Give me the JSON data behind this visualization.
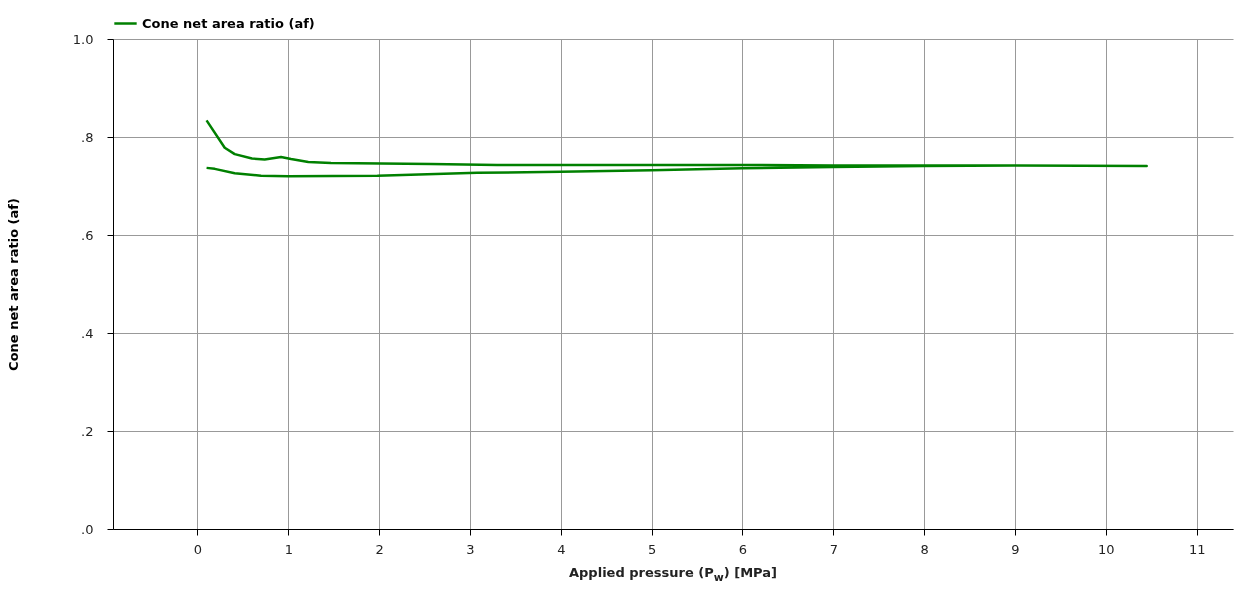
{
  "chart_data": {
    "type": "line",
    "xlabel": "Applied pressure (P$_{w}$) [MPa]",
    "ylabel": "Cone net area ratio (af)",
    "series": [
      {
        "name": "Cone net area ratio (af)",
        "color": "#008000",
        "x": [
          0.1,
          0.19,
          0.41,
          0.7,
          1.0,
          1.98,
          3.08,
          4.0,
          5.0,
          6.0,
          7.0,
          8.0,
          9.0,
          10.45,
          9.0,
          8.0,
          7.0,
          6.0,
          5.0,
          4.0,
          3.3,
          2.57,
          1.47,
          1.22,
          1.03,
          0.92,
          0.74,
          0.6,
          0.41,
          0.3,
          0.1
        ],
        "values": [
          0.737,
          0.735,
          0.726,
          0.721,
          0.72,
          0.721,
          0.727,
          0.729,
          0.732,
          0.736,
          0.739,
          0.741,
          0.742,
          0.741,
          0.742,
          0.742,
          0.742,
          0.743,
          0.743,
          0.743,
          0.743,
          0.745,
          0.747,
          0.749,
          0.755,
          0.759,
          0.754,
          0.756,
          0.765,
          0.778,
          0.834
        ]
      }
    ],
    "xlim": [
      -0.93,
      11.4
    ],
    "xticks": [
      0,
      1,
      2,
      3,
      4,
      5,
      6,
      7,
      8,
      9,
      10,
      11
    ],
    "ylim": [
      0,
      1
    ],
    "yticks": [
      {
        "value": 0,
        "label": ".0"
      },
      {
        "value": 0.2,
        "label": ".2"
      },
      {
        "value": 0.4,
        "label": ".4"
      },
      {
        "value": 0.6,
        "label": ".6"
      },
      {
        "value": 0.8,
        "label": ".8"
      },
      {
        "value": 1,
        "label": "1.0"
      }
    ],
    "grid": true,
    "legend": "top",
    "line_style": "solid",
    "marker": "none"
  }
}
